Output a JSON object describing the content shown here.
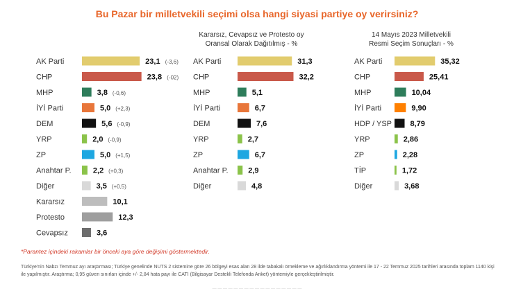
{
  "title": "Bu Pazar bir milletvekili seçimi olsa hangi siyasi partiye oy verirsiniz?",
  "panel_titles": [
    "",
    "Kararsız, Cevapsız ve Protesto oy\nOransal Olarak Dağıtılmış - %",
    "14 Mayıs 2023 Milletvekili\nResmi Seçim Sonuçları - %"
  ],
  "note": "*Parantez içindeki rakamlar bir önceki aya göre değişimi göstermektedir.",
  "footer": "Türkiye'nin Nabzı Temmuz ayı araştırması; Türkiye genelinde NUTS 2 sistemine göre 26 bölgeyi esas alan 28 ilde tabakalı örnekleme ve ağırlıklandırma yöntemi ile 17 - 22 Temmuz 2025 tarihleri arasında toplam 1140 kişi ile yapılmıştır. Araştırma; 0,95 güven sınırları içinde +/- 2,84 hata payı ile CATI (Bilgisayar Destekli Telefonda Anket) yöntemiyle gerçekleştirilmiştir.",
  "chart_data": [
    {
      "type": "bar",
      "orientation": "horizontal",
      "title": "",
      "categories": [
        "AK Parti",
        "CHP",
        "MHP",
        "İYİ Parti",
        "DEM",
        "YRP",
        "ZP",
        "Anahtar P.",
        "Diğer",
        "Kararsız",
        "Protesto",
        "Cevapsız"
      ],
      "values": [
        23.1,
        23.8,
        3.8,
        5.0,
        5.6,
        2.0,
        5.0,
        2.2,
        3.5,
        10.1,
        12.3,
        3.6
      ],
      "labels": [
        "23,1",
        "23,8",
        "3,8",
        "5,0",
        "5,6",
        "2,0",
        "5,0",
        "2,2",
        "3,5",
        "10,1",
        "12,3",
        "3,6"
      ],
      "changes": [
        "(-3,6)",
        "(-02)",
        "(-0,6)",
        "(+2,3)",
        "(-0,9)",
        "(-0,9)",
        "(+1,5)",
        "(+0,3)",
        "(+0,5)",
        "",
        "",
        ""
      ],
      "colors": [
        "#e2cc6e",
        "#c9594a",
        "#2e7d5b",
        "#e8763a",
        "#111111",
        "#8bc34a",
        "#1ea7e1",
        "#8bc34a",
        "#d9d9d9",
        "#bdbdbd",
        "#9e9e9e",
        "#6d6d6d"
      ]
    },
    {
      "type": "bar",
      "orientation": "horizontal",
      "title": "Kararsız, Cevapsız ve Protesto oy Oransal Olarak Dağıtılmış - %",
      "categories": [
        "AK Parti",
        "CHP",
        "MHP",
        "İYİ Parti",
        "DEM",
        "YRP",
        "ZP",
        "Anahtar P.",
        "Diğer"
      ],
      "values": [
        31.3,
        32.2,
        5.1,
        6.7,
        7.6,
        2.7,
        6.7,
        2.9,
        4.8
      ],
      "labels": [
        "31,3",
        "32,2",
        "5,1",
        "6,7",
        "7,6",
        "2,7",
        "6,7",
        "2,9",
        "4,8"
      ],
      "colors": [
        "#e2cc6e",
        "#c9594a",
        "#2e7d5b",
        "#e8763a",
        "#111111",
        "#8bc34a",
        "#1ea7e1",
        "#8bc34a",
        "#d9d9d9"
      ]
    },
    {
      "type": "bar",
      "orientation": "horizontal",
      "title": "14 Mayıs 2023 Milletvekili Resmi Seçim Sonuçları - %",
      "categories": [
        "AK Parti",
        "CHP",
        "MHP",
        "İYİ Parti",
        "HDP / YSP",
        "YRP",
        "ZP",
        "TİP",
        "Diğer"
      ],
      "values": [
        35.32,
        25.41,
        10.04,
        9.9,
        8.79,
        2.86,
        2.28,
        1.72,
        3.68
      ],
      "labels": [
        "35,32",
        "25,41",
        "10,04",
        "9,90",
        "8,79",
        "2,86",
        "2,28",
        "1,72",
        "3,68"
      ],
      "colors": [
        "#e2cc6e",
        "#c9594a",
        "#2e7d5b",
        "#ff8000",
        "#111111",
        "#8bc34a",
        "#1ea7e1",
        "#8bc34a",
        "#d9d9d9"
      ]
    }
  ]
}
